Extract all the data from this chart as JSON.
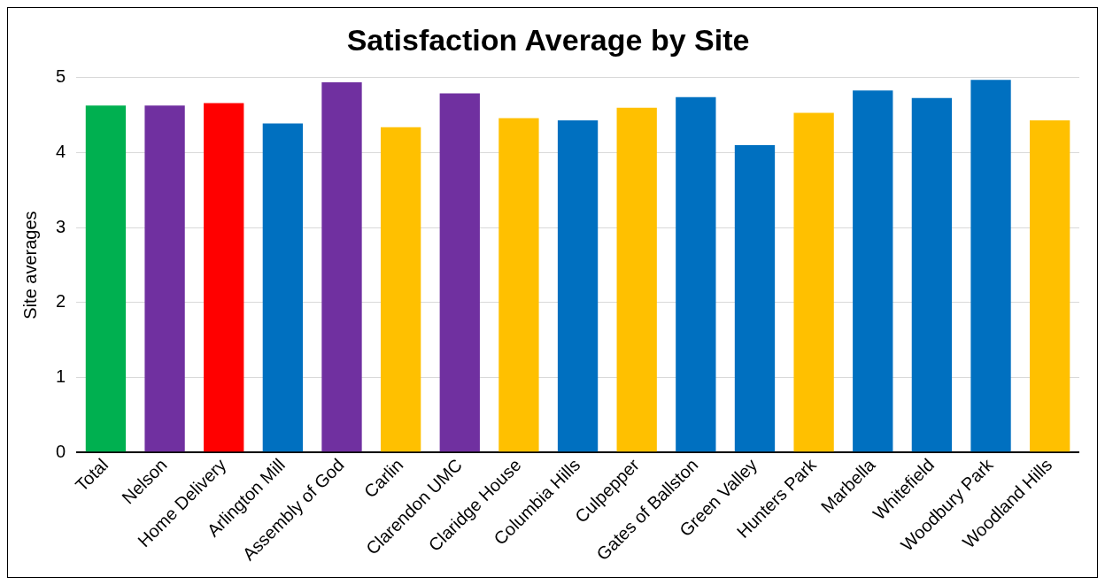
{
  "chart_data": {
    "type": "bar",
    "title": "Satisfaction Average by Site",
    "ylabel": "Site averages",
    "categories": [
      "Total",
      "Nelson",
      "Home Delivery",
      "Arlington Mill",
      "Assembly of God",
      "Carlin",
      "Clarendon UMC",
      "Claridge House",
      "Columbia Hills",
      "Culpepper",
      "Gates of Ballston",
      "Green Valley",
      "Hunters Park",
      "Marbella",
      "Whitefield",
      "Woodbury Park",
      "Woodland Hills"
    ],
    "values": [
      4.63,
      4.63,
      4.66,
      4.39,
      4.94,
      4.34,
      4.79,
      4.46,
      4.43,
      4.6,
      4.74,
      4.1,
      4.53,
      4.83,
      4.73,
      4.97,
      4.43
    ],
    "colors": [
      "#00b050",
      "#7030a0",
      "#ff0000",
      "#0070c0",
      "#7030a0",
      "#ffc000",
      "#7030a0",
      "#ffc000",
      "#0070c0",
      "#ffc000",
      "#0070c0",
      "#0070c0",
      "#ffc000",
      "#0070c0",
      "#0070c0",
      "#0070c0",
      "#ffc000"
    ],
    "ylim": [
      0,
      5
    ],
    "yticks": [
      0,
      1,
      2,
      3,
      4,
      5
    ],
    "grid": "y",
    "legend": false
  }
}
